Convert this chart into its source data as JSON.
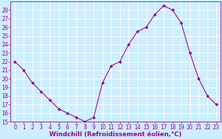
{
  "x": [
    0,
    1,
    2,
    3,
    4,
    5,
    6,
    7,
    8,
    9,
    10,
    11,
    12,
    13,
    14,
    15,
    16,
    17,
    18,
    19,
    20,
    21,
    22,
    23
  ],
  "y": [
    22,
    21,
    19.5,
    18.5,
    17.5,
    16.5,
    16,
    15.5,
    15,
    15.5,
    19.5,
    21.5,
    22,
    24,
    25.5,
    26,
    27.5,
    28.5,
    28,
    26.5,
    23,
    20,
    18,
    17
  ],
  "line_color": "#990099",
  "marker_color": "#990099",
  "bg_color": "#cceeff",
  "grid_color": "#ffffff",
  "xlabel": "Windchill (Refroidissement éolien,°C)",
  "ylim": [
    15,
    29
  ],
  "xlim": [
    -0.5,
    23.5
  ],
  "yticks": [
    15,
    16,
    17,
    18,
    19,
    20,
    21,
    22,
    23,
    24,
    25,
    26,
    27,
    28
  ],
  "xticks": [
    0,
    1,
    2,
    3,
    4,
    5,
    6,
    7,
    8,
    9,
    10,
    11,
    12,
    13,
    14,
    15,
    16,
    17,
    18,
    19,
    20,
    21,
    22,
    23
  ],
  "font_color": "#990099",
  "label_fontsize": 6.5,
  "tick_fontsize": 5.5
}
